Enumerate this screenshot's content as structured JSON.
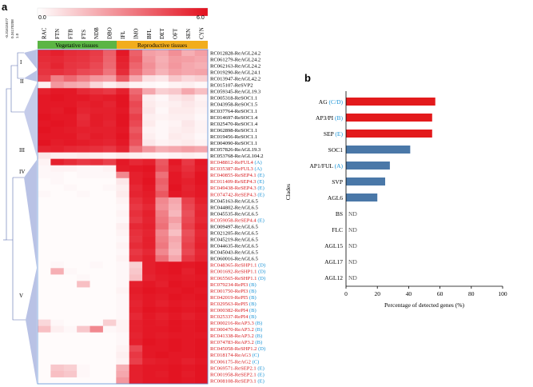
{
  "panel_a": {
    "label": "a",
    "color_scale": {
      "min_label": "0.0",
      "max_label": "6.0",
      "low_color": "#ffffff",
      "high_color": "#e3101e"
    },
    "axis_ticks": [
      "-0.31615577",
      "0.34170208",
      "1.0"
    ],
    "group_labels": {
      "vegetative": "Vegetative tissues",
      "reproductive": "Reproductive tissues"
    },
    "group_colors": {
      "vegetative": "#5bb544",
      "reproductive": "#f2ad1c"
    },
    "clade_numerals": [
      "I",
      "II",
      "III",
      "IV",
      "V"
    ],
    "columns": [
      "RAC",
      "FTN",
      "FTB",
      "FTS",
      "NDB",
      "DBO",
      "IFL",
      "IMO",
      "BFL",
      "DET",
      "OFT",
      "SEN",
      "CYN"
    ],
    "rows": [
      {
        "name": "RC012828-ReAGL24.2",
        "color": "#000000",
        "values": [
          5.4,
          5.6,
          5.3,
          5.2,
          4.9,
          4.0,
          5.8,
          4.0,
          2.4,
          2.2,
          2.8,
          2.0,
          2.4
        ]
      },
      {
        "name": "RC061279-ReAGL24.2",
        "color": "#000000",
        "values": [
          5.3,
          5.4,
          5.2,
          5.1,
          4.8,
          3.9,
          5.6,
          4.2,
          2.6,
          2.0,
          2.5,
          2.4,
          2.2
        ]
      },
      {
        "name": "RC062163-ReAGL24.2",
        "color": "#000000",
        "values": [
          5.2,
          5.5,
          5.1,
          5.0,
          4.6,
          3.8,
          5.5,
          3.9,
          2.8,
          2.1,
          2.6,
          2.2,
          2.0
        ]
      },
      {
        "name": "RC019290-ReAGL24.1",
        "color": "#000000",
        "values": [
          5.1,
          5.2,
          5.0,
          4.6,
          4.4,
          3.5,
          5.3,
          3.6,
          2.6,
          1.9,
          2.4,
          2.2,
          2.3
        ]
      },
      {
        "name": "RC013947-ReAGL42.2",
        "color": "#000000",
        "values": [
          4.8,
          3.2,
          3.8,
          3.2,
          2.6,
          2.4,
          4.2,
          2.2,
          0.8,
          0.6,
          1.4,
          1.0,
          1.2
        ]
      },
      {
        "name": "RC015107-ReSVP2",
        "color": "#000000",
        "values": [
          0.4,
          2.6,
          2.2,
          2.0,
          1.0,
          0.4,
          0.8,
          0.3,
          0.2,
          0.1,
          0.3,
          0.4,
          0.2
        ]
      },
      {
        "name": "RC059345-ReAGL19.3",
        "color": "#000000",
        "values": [
          5.6,
          5.8,
          5.8,
          5.4,
          5.2,
          5.0,
          5.6,
          3.8,
          2.2,
          1.2,
          1.4,
          2.2,
          1.6
        ]
      },
      {
        "name": "RC005318-ReSOC1.1",
        "color": "#000000",
        "values": [
          5.8,
          5.9,
          5.8,
          5.8,
          5.6,
          5.7,
          5.9,
          4.2,
          0.4,
          0.2,
          0.6,
          0.8,
          0.3
        ]
      },
      {
        "name": "RC043958-ReSOC1.5",
        "color": "#000000",
        "values": [
          5.8,
          5.8,
          5.8,
          5.6,
          5.7,
          5.5,
          5.9,
          4.6,
          0.5,
          0.3,
          0.4,
          0.6,
          0.4
        ]
      },
      {
        "name": "RC037764-ReSOC1.1",
        "color": "#000000",
        "values": [
          5.8,
          5.7,
          5.9,
          5.5,
          5.6,
          5.6,
          5.8,
          4.4,
          0.6,
          0.2,
          0.5,
          0.5,
          0.3
        ]
      },
      {
        "name": "RC014697-ReSOC1.4",
        "color": "#000000",
        "values": [
          5.9,
          5.8,
          5.8,
          5.3,
          5.7,
          5.6,
          5.9,
          4.8,
          0.4,
          0.3,
          0.4,
          0.4,
          0.2
        ]
      },
      {
        "name": "RC025470-ReSOC1.4",
        "color": "#000000",
        "values": [
          5.8,
          5.9,
          5.8,
          5.4,
          5.7,
          5.5,
          5.9,
          4.6,
          0.5,
          0.2,
          0.3,
          0.6,
          0.3
        ]
      },
      {
        "name": "RC062898-ReSOC1.1",
        "color": "#000000",
        "values": [
          5.9,
          5.8,
          5.7,
          5.6,
          5.6,
          5.6,
          5.8,
          4.2,
          0.3,
          0.2,
          0.4,
          0.5,
          0.3
        ]
      },
      {
        "name": "RC019456-ReSOC1.1",
        "color": "#000000",
        "values": [
          5.8,
          5.8,
          5.8,
          5.5,
          5.7,
          5.6,
          5.9,
          4.5,
          0.4,
          0.2,
          0.5,
          0.4,
          0.2
        ]
      },
      {
        "name": "RC004090-ReSOC1.1",
        "color": "#000000",
        "values": [
          5.9,
          5.7,
          5.8,
          5.7,
          5.6,
          5.5,
          5.8,
          4.3,
          0.6,
          0.3,
          0.4,
          0.5,
          0.3
        ]
      },
      {
        "name": "RC057826-ReAGL19.3",
        "color": "#000000",
        "values": [
          5.5,
          5.6,
          5.4,
          5.3,
          5.2,
          5.0,
          5.5,
          3.6,
          2.6,
          2.0,
          2.2,
          2.4,
          2.2
        ]
      },
      {
        "name": "RC053768-ReAGL104.2",
        "color": "#000000",
        "values": [
          0.6,
          0.4,
          0.4,
          0.5,
          0.4,
          0.3,
          0.5,
          0.4,
          0.3,
          0.2,
          0.3,
          0.4,
          0.3
        ]
      },
      {
        "name": "RC048812-ReFUL4 (A)",
        "color": "#d7191c",
        "values": [
          0.3,
          5.6,
          5.3,
          5.0,
          5.2,
          4.8,
          5.8,
          5.4,
          5.6,
          4.2,
          5.8,
          5.0,
          5.8
        ]
      },
      {
        "name": "RC035387-ReFUL3 (A)",
        "color": "#d7191c",
        "values": [
          0.2,
          0.3,
          0.3,
          0.2,
          0.2,
          0.3,
          5.7,
          5.8,
          5.9,
          4.4,
          5.6,
          5.2,
          5.7
        ]
      },
      {
        "name": "RC040855-ReSEP4.1 (E)",
        "color": "#d7191c",
        "values": [
          0.2,
          0.2,
          0.1,
          0.2,
          0.2,
          0.2,
          3.0,
          5.6,
          5.8,
          3.6,
          5.8,
          5.4,
          5.9
        ]
      },
      {
        "name": "RC011409-ReSEP4.3 (E)",
        "color": "#d7191c",
        "values": [
          0.1,
          0.2,
          0.1,
          0.1,
          0.1,
          0.1,
          0.6,
          5.6,
          5.9,
          4.0,
          5.8,
          5.6,
          5.9
        ]
      },
      {
        "name": "RC049438-ReSEP4.3 (E)",
        "color": "#d7191c",
        "values": [
          0.1,
          0.1,
          0.2,
          0.1,
          0.1,
          0.2,
          0.4,
          5.4,
          5.8,
          3.8,
          5.9,
          5.5,
          5.8
        ]
      },
      {
        "name": "RC074742-ReSEP4.3 (E)",
        "color": "#d7191c",
        "values": [
          0.2,
          0.1,
          0.1,
          0.2,
          0.1,
          0.1,
          0.5,
          5.5,
          5.7,
          4.2,
          5.8,
          5.6,
          5.8
        ]
      },
      {
        "name": "RC045163-ReAGL6.5",
        "color": "#000000",
        "values": [
          0.1,
          0.1,
          0.1,
          0.1,
          0.1,
          0.1,
          0.3,
          5.2,
          5.6,
          3.0,
          2.2,
          4.8,
          5.6
        ]
      },
      {
        "name": "RC044802-ReAGL6.5",
        "color": "#000000",
        "values": [
          0.1,
          0.1,
          0.1,
          0.1,
          0.1,
          0.1,
          0.2,
          5.0,
          5.4,
          2.8,
          2.0,
          4.6,
          5.4
        ]
      },
      {
        "name": "RC045535-ReAGL6.5",
        "color": "#000000",
        "values": [
          0.1,
          0.1,
          0.1,
          0.1,
          0.1,
          0.1,
          0.3,
          5.2,
          5.6,
          3.2,
          1.8,
          4.4,
          5.5
        ]
      },
      {
        "name": "RC059058-ReSEP4.4 (E)",
        "color": "#d7191c",
        "values": [
          0.1,
          0.1,
          0.1,
          0.1,
          0.1,
          0.1,
          0.2,
          5.0,
          5.5,
          3.4,
          2.4,
          4.6,
          5.4
        ]
      },
      {
        "name": "RC009497-ReAGL6.5",
        "color": "#000000",
        "values": [
          0.1,
          0.1,
          0.1,
          0.1,
          0.1,
          0.1,
          0.4,
          5.4,
          5.6,
          3.6,
          2.0,
          4.8,
          5.6
        ]
      },
      {
        "name": "RC021205-ReAGL6.5",
        "color": "#000000",
        "values": [
          0.1,
          0.1,
          0.1,
          0.1,
          0.1,
          0.1,
          0.3,
          5.2,
          5.5,
          3.0,
          1.6,
          4.4,
          5.4
        ]
      },
      {
        "name": "RC045219-ReAGL6.5",
        "color": "#000000",
        "values": [
          0.1,
          0.1,
          0.1,
          0.1,
          0.1,
          0.1,
          0.2,
          5.1,
          5.6,
          3.2,
          2.2,
          4.6,
          5.5
        ]
      },
      {
        "name": "RC044635-ReAGL6.5",
        "color": "#000000",
        "values": [
          0.1,
          0.1,
          0.1,
          0.1,
          0.1,
          0.1,
          0.3,
          5.3,
          5.6,
          3.4,
          2.0,
          4.8,
          5.6
        ]
      },
      {
        "name": "RC045043-ReAGL6.5",
        "color": "#000000",
        "values": [
          0.1,
          0.1,
          0.1,
          0.1,
          0.1,
          0.1,
          0.2,
          5.0,
          5.4,
          3.0,
          1.8,
          4.6,
          5.4
        ]
      },
      {
        "name": "RC060016-ReAGL6.5",
        "color": "#000000",
        "values": [
          0.1,
          0.1,
          0.1,
          0.1,
          0.1,
          0.1,
          0.3,
          5.2,
          5.6,
          3.6,
          2.2,
          5.0,
          5.5
        ]
      },
      {
        "name": "RC048365-ReSHP1.1 (D)",
        "color": "#d7191c",
        "values": [
          0.1,
          0.2,
          0.1,
          0.1,
          0.2,
          0.1,
          0.2,
          1.2,
          5.6,
          5.8,
          5.9,
          5.8,
          5.9
        ]
      },
      {
        "name": "RC001692-ReSHP1.1 (D)",
        "color": "#d7191c",
        "values": [
          0.1,
          2.0,
          0.2,
          0.1,
          0.1,
          0.1,
          0.2,
          1.4,
          5.6,
          5.8,
          5.9,
          5.6,
          5.9
        ]
      },
      {
        "name": "RC065565-ReSHP1.1 (D)",
        "color": "#d7191c",
        "values": [
          0.1,
          0.1,
          0.1,
          0.2,
          0.1,
          0.1,
          0.2,
          1.6,
          5.5,
          5.7,
          5.8,
          5.7,
          5.8
        ]
      },
      {
        "name": "RC079234-RePI3 (B)",
        "color": "#d7191c",
        "values": [
          0.1,
          0.1,
          0.1,
          1.6,
          0.1,
          0.1,
          0.2,
          5.6,
          5.8,
          5.6,
          5.9,
          5.8,
          5.9
        ]
      },
      {
        "name": "RC001750-RePI3 (B)",
        "color": "#d7191c",
        "values": [
          0.1,
          0.1,
          0.1,
          0.1,
          0.1,
          0.1,
          0.3,
          5.7,
          5.9,
          5.8,
          5.8,
          5.9,
          5.8
        ]
      },
      {
        "name": "RC042019-RePI5 (B)",
        "color": "#d7191c",
        "values": [
          0.1,
          0.1,
          0.1,
          0.1,
          0.1,
          0.1,
          0.2,
          5.6,
          5.8,
          5.7,
          5.9,
          5.8,
          5.9
        ]
      },
      {
        "name": "RC029563-RePI5 (B)",
        "color": "#d7191c",
        "values": [
          0.1,
          0.1,
          0.1,
          0.1,
          0.1,
          0.1,
          0.2,
          5.5,
          5.8,
          5.6,
          5.8,
          5.7,
          5.8
        ]
      },
      {
        "name": "RC000382-RePI4 (B)",
        "color": "#d7191c",
        "values": [
          0.1,
          0.1,
          0.1,
          0.1,
          0.1,
          0.1,
          0.2,
          5.6,
          5.9,
          5.8,
          5.9,
          5.8,
          5.9
        ]
      },
      {
        "name": "RC025337-RePI4 (B)",
        "color": "#d7191c",
        "values": [
          0.1,
          0.1,
          0.1,
          0.1,
          0.1,
          0.1,
          0.2,
          5.4,
          5.8,
          5.6,
          5.8,
          5.6,
          5.8
        ]
      },
      {
        "name": "RC000216-ReAP3.3 (B)",
        "color": "#d7191c",
        "values": [
          1.0,
          0.2,
          0.1,
          0.1,
          0.1,
          1.2,
          0.3,
          5.6,
          5.8,
          5.7,
          5.9,
          5.8,
          5.9
        ]
      },
      {
        "name": "RC000470-ReAP3.2 (B)",
        "color": "#d7191c",
        "values": [
          1.6,
          0.4,
          0.2,
          1.4,
          3.0,
          0.2,
          0.3,
          5.6,
          5.8,
          5.8,
          5.9,
          5.8,
          5.9
        ]
      },
      {
        "name": "RC041338-ReAP3.2 (B)",
        "color": "#d7191c",
        "values": [
          0.1,
          0.1,
          0.1,
          0.1,
          0.1,
          0.1,
          0.2,
          5.5,
          5.8,
          5.7,
          5.8,
          5.8,
          5.8
        ]
      },
      {
        "name": "RC074783-ReAP3.2 (B)",
        "color": "#d7191c",
        "values": [
          0.1,
          0.1,
          0.1,
          0.1,
          0.1,
          0.1,
          0.2,
          5.6,
          5.9,
          5.8,
          5.9,
          5.8,
          5.9
        ]
      },
      {
        "name": "RC045058-ReSHP1.2 (D)",
        "color": "#d7191c",
        "values": [
          0.1,
          0.1,
          0.1,
          0.1,
          0.1,
          0.1,
          0.3,
          4.6,
          5.8,
          5.8,
          5.9,
          5.8,
          5.9
        ]
      },
      {
        "name": "RC018174-ReAG3 (C)",
        "color": "#d7191c",
        "values": [
          0.1,
          0.1,
          0.1,
          0.1,
          0.1,
          0.1,
          0.4,
          5.0,
          5.8,
          5.9,
          5.8,
          5.8,
          5.9
        ]
      },
      {
        "name": "RC006175-ReAG2 (C)",
        "color": "#d7191c",
        "values": [
          0.1,
          0.1,
          0.1,
          0.1,
          0.1,
          0.1,
          0.3,
          4.8,
          5.6,
          5.7,
          5.8,
          5.6,
          5.8
        ]
      },
      {
        "name": "RC069571-ReSEP2.1 (E)",
        "color": "#d7191c",
        "values": [
          0.1,
          1.4,
          1.2,
          0.2,
          0.1,
          0.1,
          2.0,
          5.6,
          5.8,
          5.8,
          5.9,
          5.8,
          5.9
        ]
      },
      {
        "name": "RC001958-ReSEP2.1 (E)",
        "color": "#d7191c",
        "values": [
          0.1,
          1.6,
          1.4,
          0.2,
          0.1,
          0.1,
          2.2,
          5.6,
          5.8,
          5.7,
          5.9,
          5.7,
          5.9
        ]
      },
      {
        "name": "RC008108-ReSEP3.1 (E)",
        "color": "#d7191c",
        "values": [
          0.1,
          0.1,
          0.1,
          0.1,
          0.1,
          0.1,
          2.6,
          5.6,
          5.8,
          5.8,
          5.9,
          5.8,
          5.9
        ]
      }
    ]
  },
  "chart_data": {
    "type": "bar",
    "orientation": "horizontal",
    "panel": "b",
    "categories": [
      "AG",
      "AP3/PI",
      "SEP",
      "SOC1",
      "AP1/FUL",
      "SVP",
      "AGL6",
      "BS",
      "FLC",
      "AGL15",
      "AGL17",
      "AGL12"
    ],
    "category_suffixes": [
      "(C/D)",
      "(B)",
      "(E)",
      "",
      "(A)",
      "",
      "",
      "",
      "",
      "",
      "",
      ""
    ],
    "values": [
      57,
      55,
      55,
      41,
      28,
      25,
      20,
      0,
      0,
      0,
      0,
      0
    ],
    "value_labels": [
      "",
      "",
      "",
      "",
      "",
      "",
      "",
      "ND",
      "ND",
      "ND",
      "ND",
      "ND"
    ],
    "bar_colors": [
      "#e31a1c",
      "#e31a1c",
      "#e31a1c",
      "#4a78a8",
      "#4a78a8",
      "#4a78a8",
      "#4a78a8",
      "#4a78a8",
      "#4a78a8",
      "#4a78a8",
      "#4a78a8",
      "#4a78a8"
    ],
    "suffix_color": "#1a93d6",
    "xlabel": "Percentage of detected genes (%)",
    "ylabel": "Clades",
    "xlim": [
      0,
      100
    ],
    "xticks": [
      "0",
      "20",
      "40",
      "60",
      "80",
      "100"
    ]
  }
}
